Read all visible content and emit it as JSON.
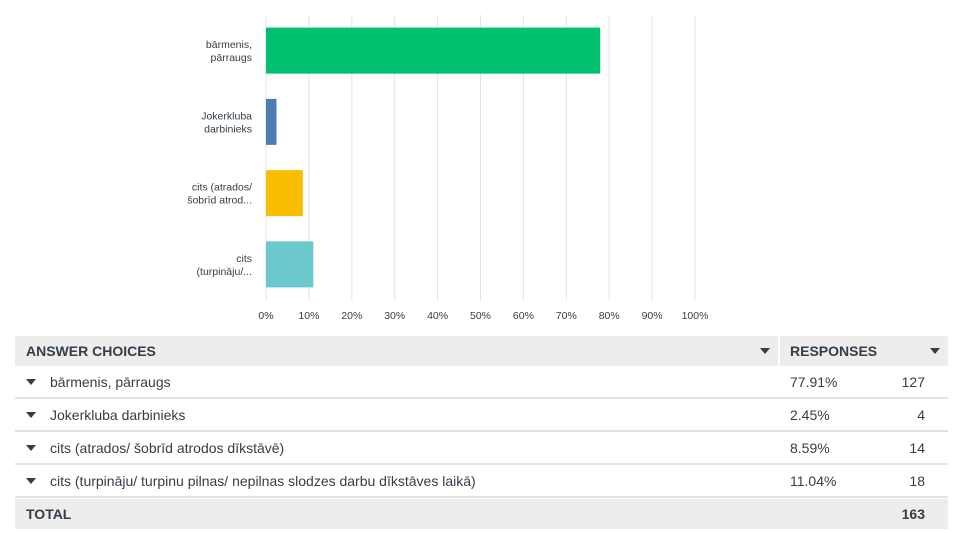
{
  "chart_data": {
    "type": "bar",
    "orientation": "horizontal",
    "categories": [
      "bārmenis,\npārraugs",
      "Jokerkluba\ndarbinieks",
      "cits (atrados/\nšobrīd atrod...",
      "cits\n(turpināju/..."
    ],
    "values": [
      77.91,
      2.45,
      8.59,
      11.04
    ],
    "colors": [
      "#00bf6f",
      "#507cb6",
      "#f9be00",
      "#6bc8cd"
    ],
    "xlim": [
      0,
      100
    ],
    "xticks": [
      "0%",
      "10%",
      "20%",
      "30%",
      "40%",
      "50%",
      "60%",
      "70%",
      "80%",
      "90%",
      "100%"
    ],
    "grid": true,
    "title": "",
    "xlabel": "",
    "ylabel": ""
  },
  "table": {
    "header": {
      "answer": "ANSWER CHOICES",
      "responses": "RESPONSES"
    },
    "rows": [
      {
        "answer": "bārmenis, pārraugs",
        "pct": "77.91%",
        "count": "127"
      },
      {
        "answer": "Jokerkluba darbinieks",
        "pct": "2.45%",
        "count": "4"
      },
      {
        "answer": "cits (atrados/ šobrīd atrodos dīkstāvē)",
        "pct": "8.59%",
        "count": "14"
      },
      {
        "answer": "cits (turpināju/ turpinu pilnas/ nepilnas slodzes darbu dīkstāves laikā)",
        "pct": "11.04%",
        "count": "18"
      }
    ],
    "total": {
      "label": "TOTAL",
      "count": "163"
    }
  }
}
